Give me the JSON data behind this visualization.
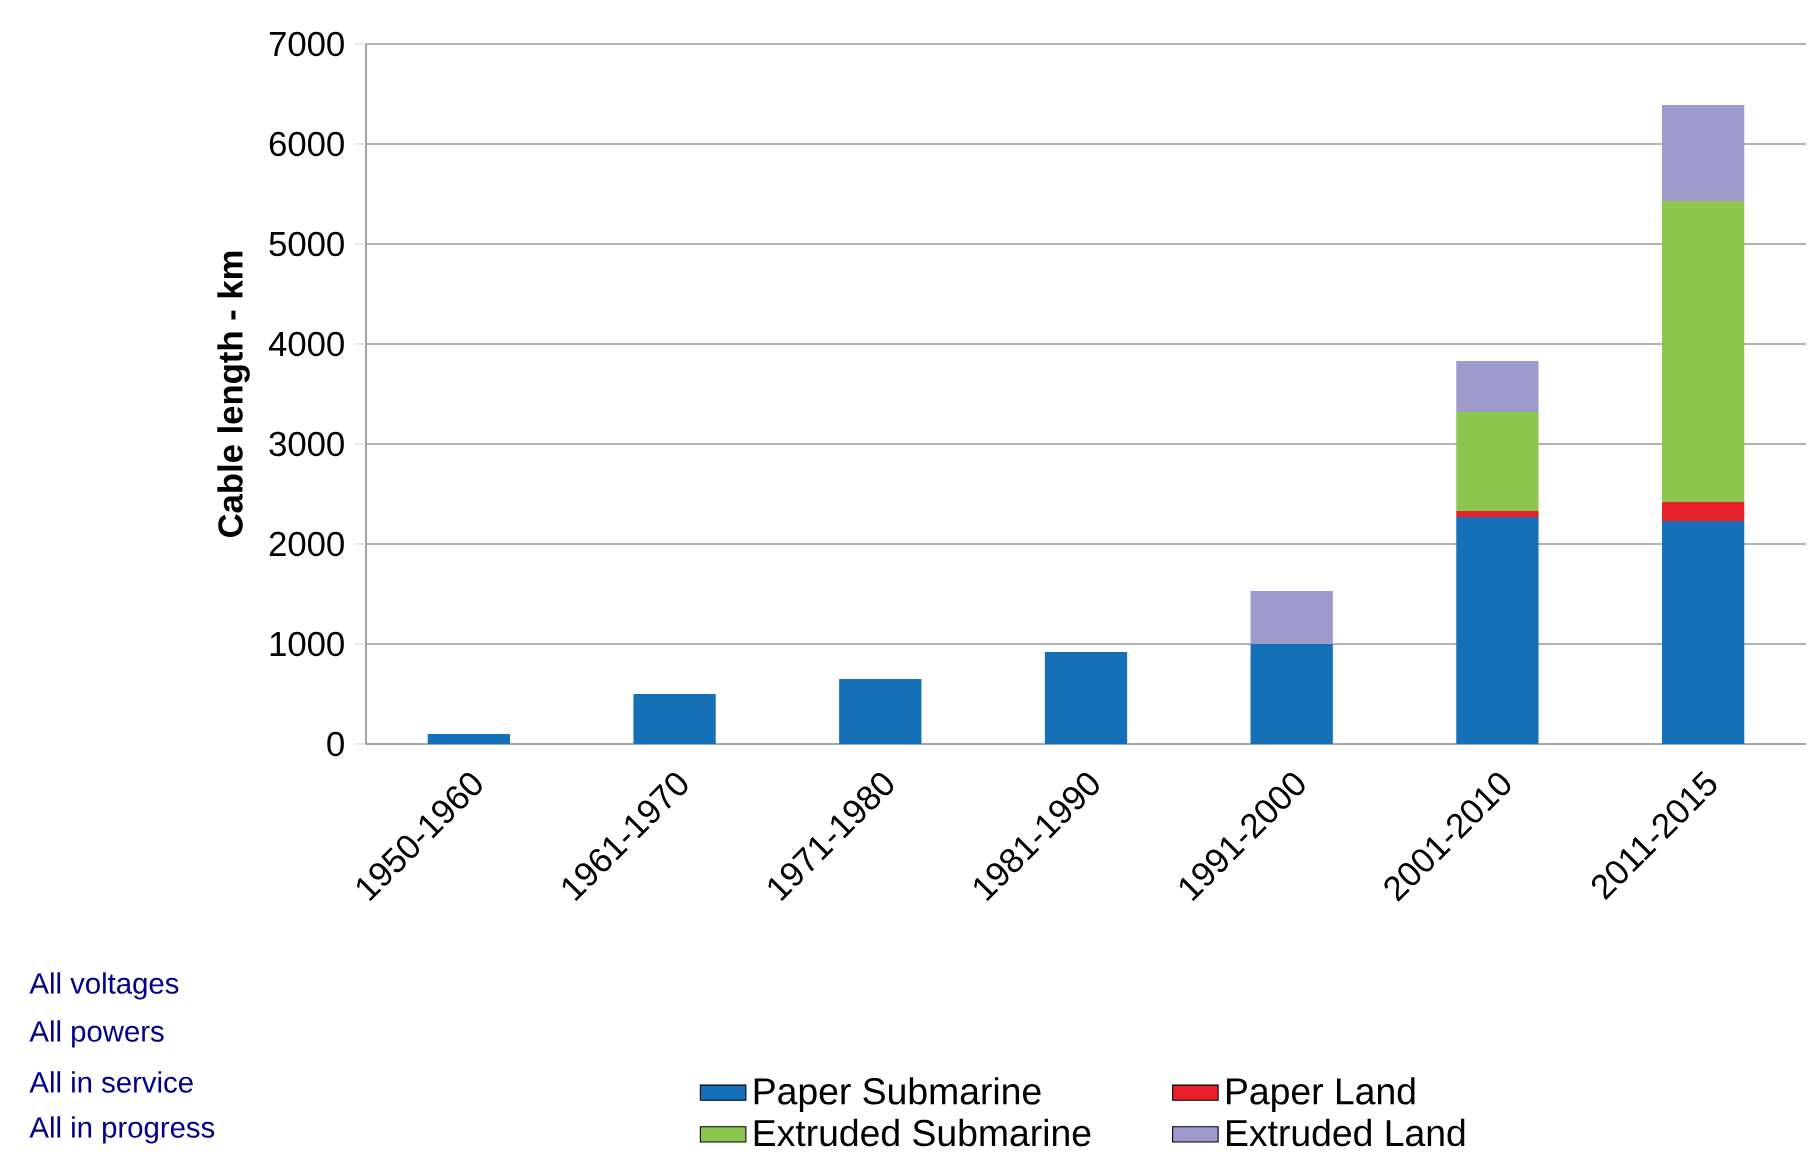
{
  "chart_data": {
    "type": "bar",
    "stacked": true,
    "ylabel": "Cable length - km",
    "categories": [
      "1950-1960",
      "1961-1970",
      "1971-1980",
      "1981-1990",
      "1991-2000",
      "2001-2010",
      "2011-2015"
    ],
    "series": [
      {
        "name": "Paper Submarine",
        "color": "#1570b8",
        "values": [
          100,
          500,
          650,
          920,
          1000,
          2270,
          2230
        ]
      },
      {
        "name": "Paper Land",
        "color": "#e8212a",
        "values": [
          0,
          0,
          0,
          0,
          0,
          60,
          190
        ]
      },
      {
        "name": "Extruded Submarine",
        "color": "#8cc64f",
        "values": [
          0,
          0,
          0,
          0,
          0,
          990,
          3010
        ]
      },
      {
        "name": "Extruded Land",
        "color": "#9e9acb",
        "values": [
          0,
          0,
          0,
          0,
          530,
          510,
          960
        ]
      }
    ],
    "ylim": [
      0,
      7000
    ],
    "yticks": [
      0,
      1000,
      2000,
      3000,
      4000,
      5000,
      6000,
      7000
    ],
    "grid": "y",
    "legend": "bottom",
    "annotations": [
      "All voltages",
      "All powers",
      "All in service",
      "All in progress"
    ]
  }
}
